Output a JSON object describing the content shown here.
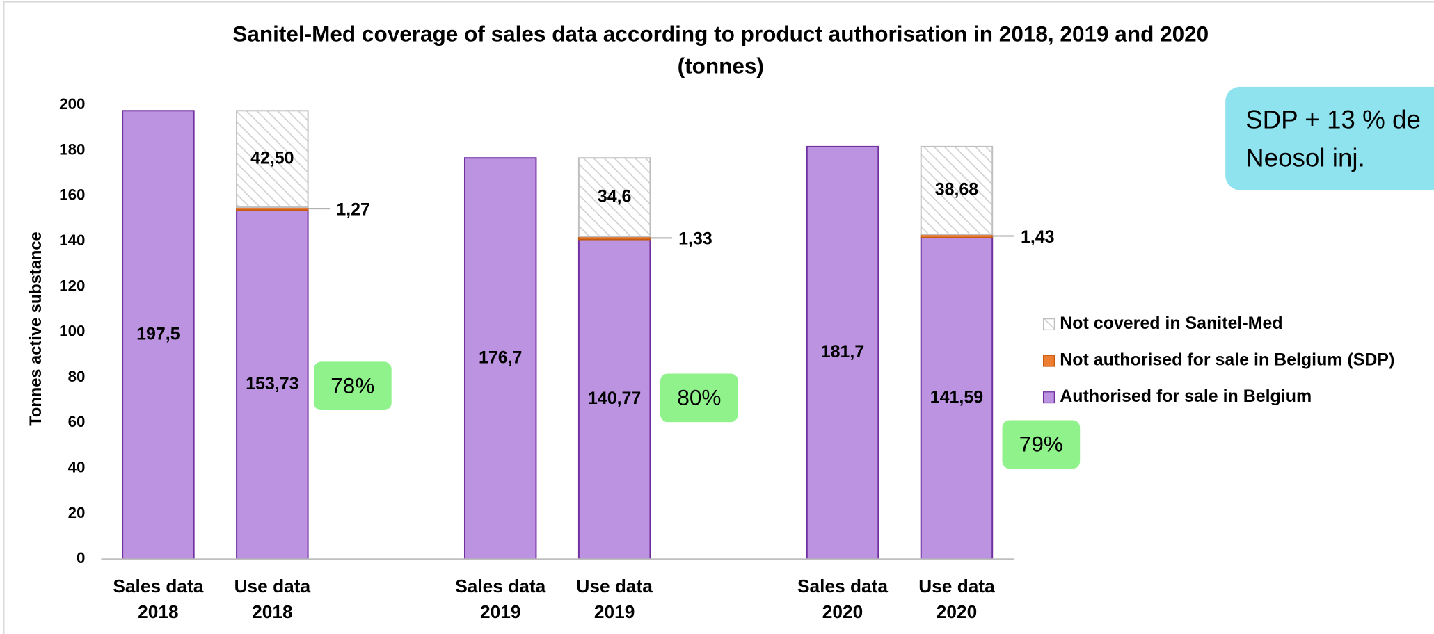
{
  "chart_data": {
    "type": "bar",
    "stacked": true,
    "title": "Sanitel-Med coverage of sales data according to product authorisation in 2018, 2019 and 2020",
    "subtitle": "(tonnes)",
    "y_label": "Tonnes active substance",
    "categories": [
      "Sales data 2018",
      "Use data 2018",
      null,
      "Sales data 2019",
      "Use data 2019",
      null,
      "Sales data 2020",
      "Use data 2020"
    ],
    "series": [
      {
        "name": "Authorised for sale in Belgium",
        "color": "#bb93e0",
        "values": [
          197.5,
          153.73,
          null,
          176.7,
          140.77,
          null,
          181.7,
          141.59
        ],
        "value_labels": [
          "197,5",
          "153,73",
          null,
          "176,7",
          "140,77",
          null,
          "181,7",
          "141,59"
        ]
      },
      {
        "name": "Not authorised for sale in Belgium (SDP)",
        "color": "#ed7d31",
        "values": [
          null,
          1.27,
          null,
          null,
          1.33,
          null,
          null,
          1.43
        ],
        "value_labels": [
          null,
          "1,27",
          null,
          null,
          "1,33",
          null,
          null,
          "1,43"
        ]
      },
      {
        "name": "Not covered in Sanitel-Med",
        "color": "#d9d9d9",
        "values": [
          null,
          42.5,
          null,
          null,
          34.6,
          null,
          null,
          38.68
        ],
        "value_labels": [
          null,
          "42,50",
          null,
          null,
          "34,6",
          null,
          null,
          "38,68"
        ]
      }
    ],
    "ylim": [
      0,
      200
    ],
    "yticks": [
      0,
      20,
      40,
      60,
      80,
      100,
      120,
      140,
      160,
      180,
      200
    ],
    "grid": false,
    "legend": "right",
    "annotations": [
      "78%",
      "80%",
      "79%"
    ],
    "note": [
      "SDP + 13 % de",
      "Neosol inj."
    ]
  }
}
